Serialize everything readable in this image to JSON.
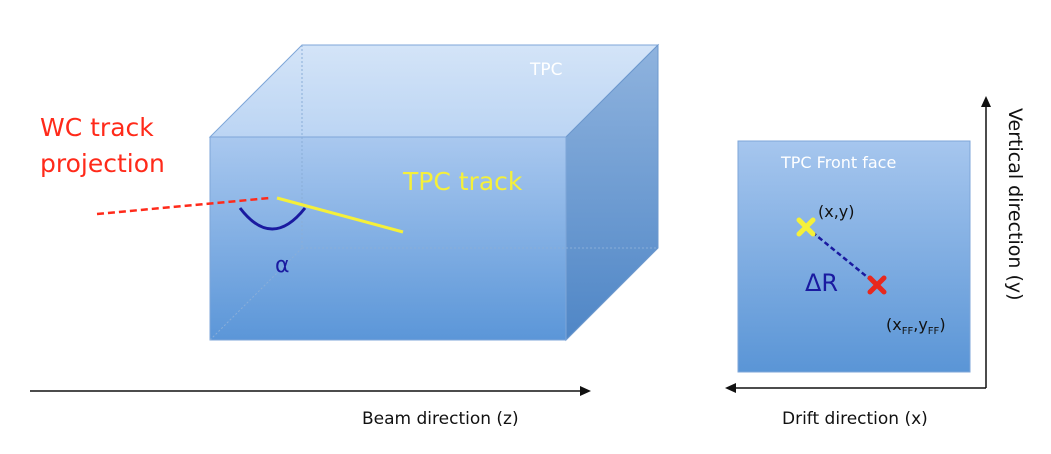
{
  "box": {
    "title": "TPC",
    "tpc_track_label": "TPC track",
    "wc_track_label_line1": "WC track",
    "wc_track_label_line2": "projection",
    "angle_label": "α"
  },
  "front_face": {
    "title": "TPC Front face",
    "point1_label": "(x,y)",
    "point2_label": "(x",
    "point2_sub1": "FF",
    "point2_mid": ",y",
    "point2_sub2": "FF",
    "point2_end": ")",
    "distance_label": "ΔR"
  },
  "axes": {
    "beam": "Beam direction (z)",
    "drift": "Drift direction (x)",
    "vertical": "Vertical direction (y)"
  },
  "colors": {
    "wc_track": "#ff2a1a",
    "tpc_track": "#f5f03a",
    "angle": "#1a1aa0",
    "point_xy": "#f5f03a",
    "point_ff": "#e8281e",
    "box_front_top": "#a9c8ef",
    "box_front_bottom": "#5a95d6"
  }
}
